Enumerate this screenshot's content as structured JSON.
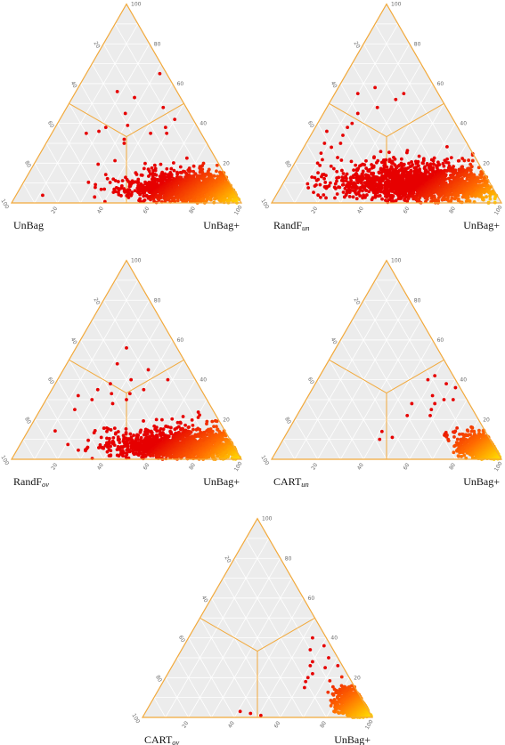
{
  "colors": {
    "triangle_fill": "#ececec",
    "triangle_edge": "#f2a93b",
    "grid": "#ffffff",
    "region_divider": "#f2a93b",
    "point_low_density": "#e60000",
    "point_mid_density": "#ff6a00",
    "point_high_density": "#ffe000"
  },
  "ticks": [
    "20",
    "40",
    "60",
    "80",
    "100"
  ],
  "chart_data": [
    {
      "type": "scatter",
      "subtype": "ternary",
      "left_label": "UnBag",
      "left_label_sub": "",
      "right_label": "UnBag+",
      "axis_range": [
        0,
        100
      ],
      "grid": true,
      "density_coloring": true,
      "cloud": {
        "left_mean": 18,
        "left_sd": 14,
        "top_mean": 11,
        "top_sd": 8,
        "n_points": 1400
      },
      "scattered_points": [
        [
          26,
          56,
          18
        ],
        [
          20,
          53,
          27
        ],
        [
          10,
          48,
          42
        ],
        [
          28,
          45,
          27
        ],
        [
          40,
          38,
          22
        ],
        [
          8,
          42,
          50
        ],
        [
          35,
          32,
          33
        ],
        [
          14,
          38,
          48
        ],
        [
          30,
          39,
          31
        ],
        [
          36,
          30,
          34
        ],
        [
          22,
          35,
          43
        ],
        [
          44,
          36,
          20
        ],
        [
          50,
          35,
          15
        ],
        [
          15,
          35,
          50
        ],
        [
          3,
          65,
          32
        ]
      ]
    },
    {
      "type": "scatter",
      "subtype": "ternary",
      "left_label": "RandF",
      "left_label_sub": "un",
      "right_label": "UnBag+",
      "axis_range": [
        0,
        100
      ],
      "grid": true,
      "density_coloring": true,
      "cloud": {
        "left_mean": 30,
        "left_sd": 18,
        "top_mean": 14,
        "top_sd": 10,
        "n_points": 1700
      },
      "scattered_points": [
        [
          35,
          55,
          10
        ],
        [
          26,
          58,
          16
        ],
        [
          45,
          40,
          15
        ],
        [
          20,
          52,
          28
        ],
        [
          60,
          28,
          12
        ],
        [
          55,
          30,
          15
        ],
        [
          48,
          38,
          14
        ],
        [
          70,
          20,
          10
        ],
        [
          62,
          30,
          8
        ],
        [
          30,
          48,
          22
        ],
        [
          15,
          55,
          30
        ],
        [
          40,
          45,
          15
        ],
        [
          52,
          34,
          14
        ],
        [
          66,
          25,
          9
        ],
        [
          58,
          36,
          6
        ]
      ]
    },
    {
      "type": "scatter",
      "subtype": "ternary",
      "left_label": "RandF",
      "left_label_sub": "ov",
      "right_label": "UnBag+",
      "axis_range": [
        0,
        100
      ],
      "grid": true,
      "density_coloring": true,
      "cloud": {
        "left_mean": 22,
        "left_sd": 15,
        "top_mean": 10,
        "top_sd": 8,
        "n_points": 1500
      },
      "scattered_points": [
        [
          22,
          56,
          22
        ],
        [
          30,
          48,
          22
        ],
        [
          40,
          33,
          27
        ],
        [
          45,
          35,
          20
        ],
        [
          38,
          38,
          24
        ],
        [
          50,
          30,
          20
        ],
        [
          18,
          45,
          37
        ],
        [
          12,
          40,
          48
        ],
        [
          28,
          40,
          32
        ],
        [
          35,
          30,
          35
        ],
        [
          42,
          28,
          30
        ],
        [
          55,
          32,
          13
        ],
        [
          60,
          25,
          15
        ],
        [
          25,
          35,
          40
        ],
        [
          32,
          33,
          35
        ]
      ]
    },
    {
      "type": "scatter",
      "subtype": "ternary",
      "left_label": "CART",
      "left_label_sub": "un",
      "right_label": "UnBag+",
      "axis_range": [
        0,
        100
      ],
      "grid": true,
      "density_coloring": true,
      "cloud": {
        "left_mean": 5,
        "left_sd": 5,
        "top_mean": 8,
        "top_sd": 7,
        "n_points": 900
      },
      "scattered_points": [
        [
          12,
          40,
          48
        ],
        [
          8,
          42,
          50
        ],
        [
          5,
          38,
          57
        ],
        [
          14,
          32,
          54
        ],
        [
          10,
          30,
          60
        ],
        [
          2,
          36,
          62
        ],
        [
          15,
          28,
          57
        ],
        [
          6,
          30,
          64
        ],
        [
          18,
          25,
          57
        ],
        [
          20,
          22,
          58
        ],
        [
          48,
          10,
          42
        ],
        [
          45,
          14,
          41
        ],
        [
          42,
          11,
          47
        ],
        [
          25,
          28,
          47
        ],
        [
          30,
          22,
          48
        ]
      ]
    },
    {
      "type": "scatter",
      "subtype": "ternary",
      "left_label": "CART",
      "left_label_sub": "ov",
      "right_label": "UnBag+",
      "axis_range": [
        0,
        100
      ],
      "grid": true,
      "density_coloring": true,
      "cloud": {
        "left_mean": 4,
        "left_sd": 4,
        "top_mean": 9,
        "top_sd": 7,
        "n_points": 850
      },
      "scattered_points": [
        [
          10,
          34,
          56
        ],
        [
          6,
          40,
          54
        ],
        [
          3,
          36,
          61
        ],
        [
          12,
          28,
          60
        ],
        [
          8,
          25,
          67
        ],
        [
          15,
          22,
          63
        ],
        [
          4,
          30,
          66
        ],
        [
          18,
          20,
          62
        ],
        [
          2,
          26,
          72
        ],
        [
          20,
          18,
          62
        ],
        [
          52,
          2,
          46
        ],
        [
          56,
          3,
          41
        ],
        [
          48,
          1,
          51
        ],
        [
          14,
          26,
          60
        ],
        [
          22,
          15,
          63
        ]
      ]
    }
  ]
}
